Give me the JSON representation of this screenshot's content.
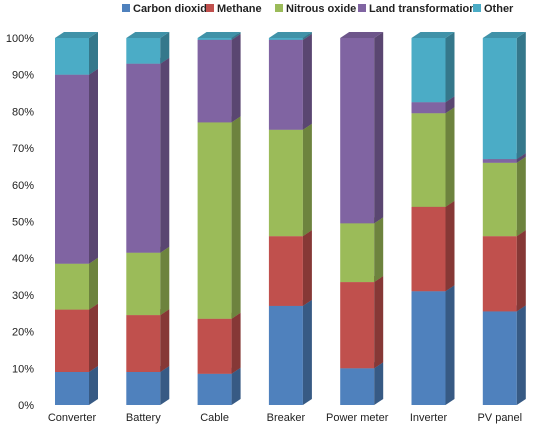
{
  "chart_data": {
    "type": "bar",
    "stacked": true,
    "percent_stacked": true,
    "three_d": true,
    "categories": [
      "Converter",
      "Battery",
      "Cable",
      "Breaker",
      "Power meter",
      "Inverter",
      "PV panel"
    ],
    "series": [
      {
        "name": "Carbon dioxide",
        "color": "#4F81BD",
        "values": [
          9,
          9,
          8.5,
          27,
          10,
          31,
          25.5
        ]
      },
      {
        "name": "Methane",
        "color": "#C0504D",
        "values": [
          17,
          15.5,
          15,
          19,
          23.5,
          23,
          20.5
        ]
      },
      {
        "name": "Nitrous oxide",
        "color": "#9BBB59",
        "values": [
          12.5,
          17,
          53.5,
          29,
          16,
          25.5,
          20
        ]
      },
      {
        "name": "Land transformation",
        "color": "#8064A2",
        "values": [
          51.5,
          51.5,
          22.5,
          24.5,
          50.5,
          3,
          1
        ]
      },
      {
        "name": "Other",
        "color": "#4BACC6",
        "values": [
          10,
          7,
          0.5,
          0.5,
          0,
          17.5,
          33
        ]
      }
    ],
    "yticks": [
      "0%",
      "10%",
      "20%",
      "30%",
      "40%",
      "50%",
      "60%",
      "70%",
      "80%",
      "90%",
      "100%"
    ],
    "ylim": [
      0,
      100
    ],
    "legend_position": "top",
    "grid": false
  }
}
